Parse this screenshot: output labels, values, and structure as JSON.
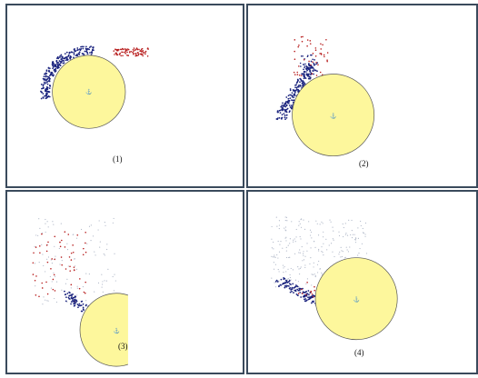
{
  "panels": [
    {
      "id": "p1",
      "label": "(1)"
    },
    {
      "id": "p2",
      "label": "(2)"
    },
    {
      "id": "p3",
      "label": "(3)"
    },
    {
      "id": "p4",
      "label": "(4)"
    }
  ],
  "colors": {
    "circle_fill": "#fdf79c",
    "circle_stroke": "#555555",
    "blue_dots": "#1a237e",
    "red_dots": "#b71c1c",
    "grey_dots": "#b0b8c8",
    "border": "#3a4a5c"
  }
}
